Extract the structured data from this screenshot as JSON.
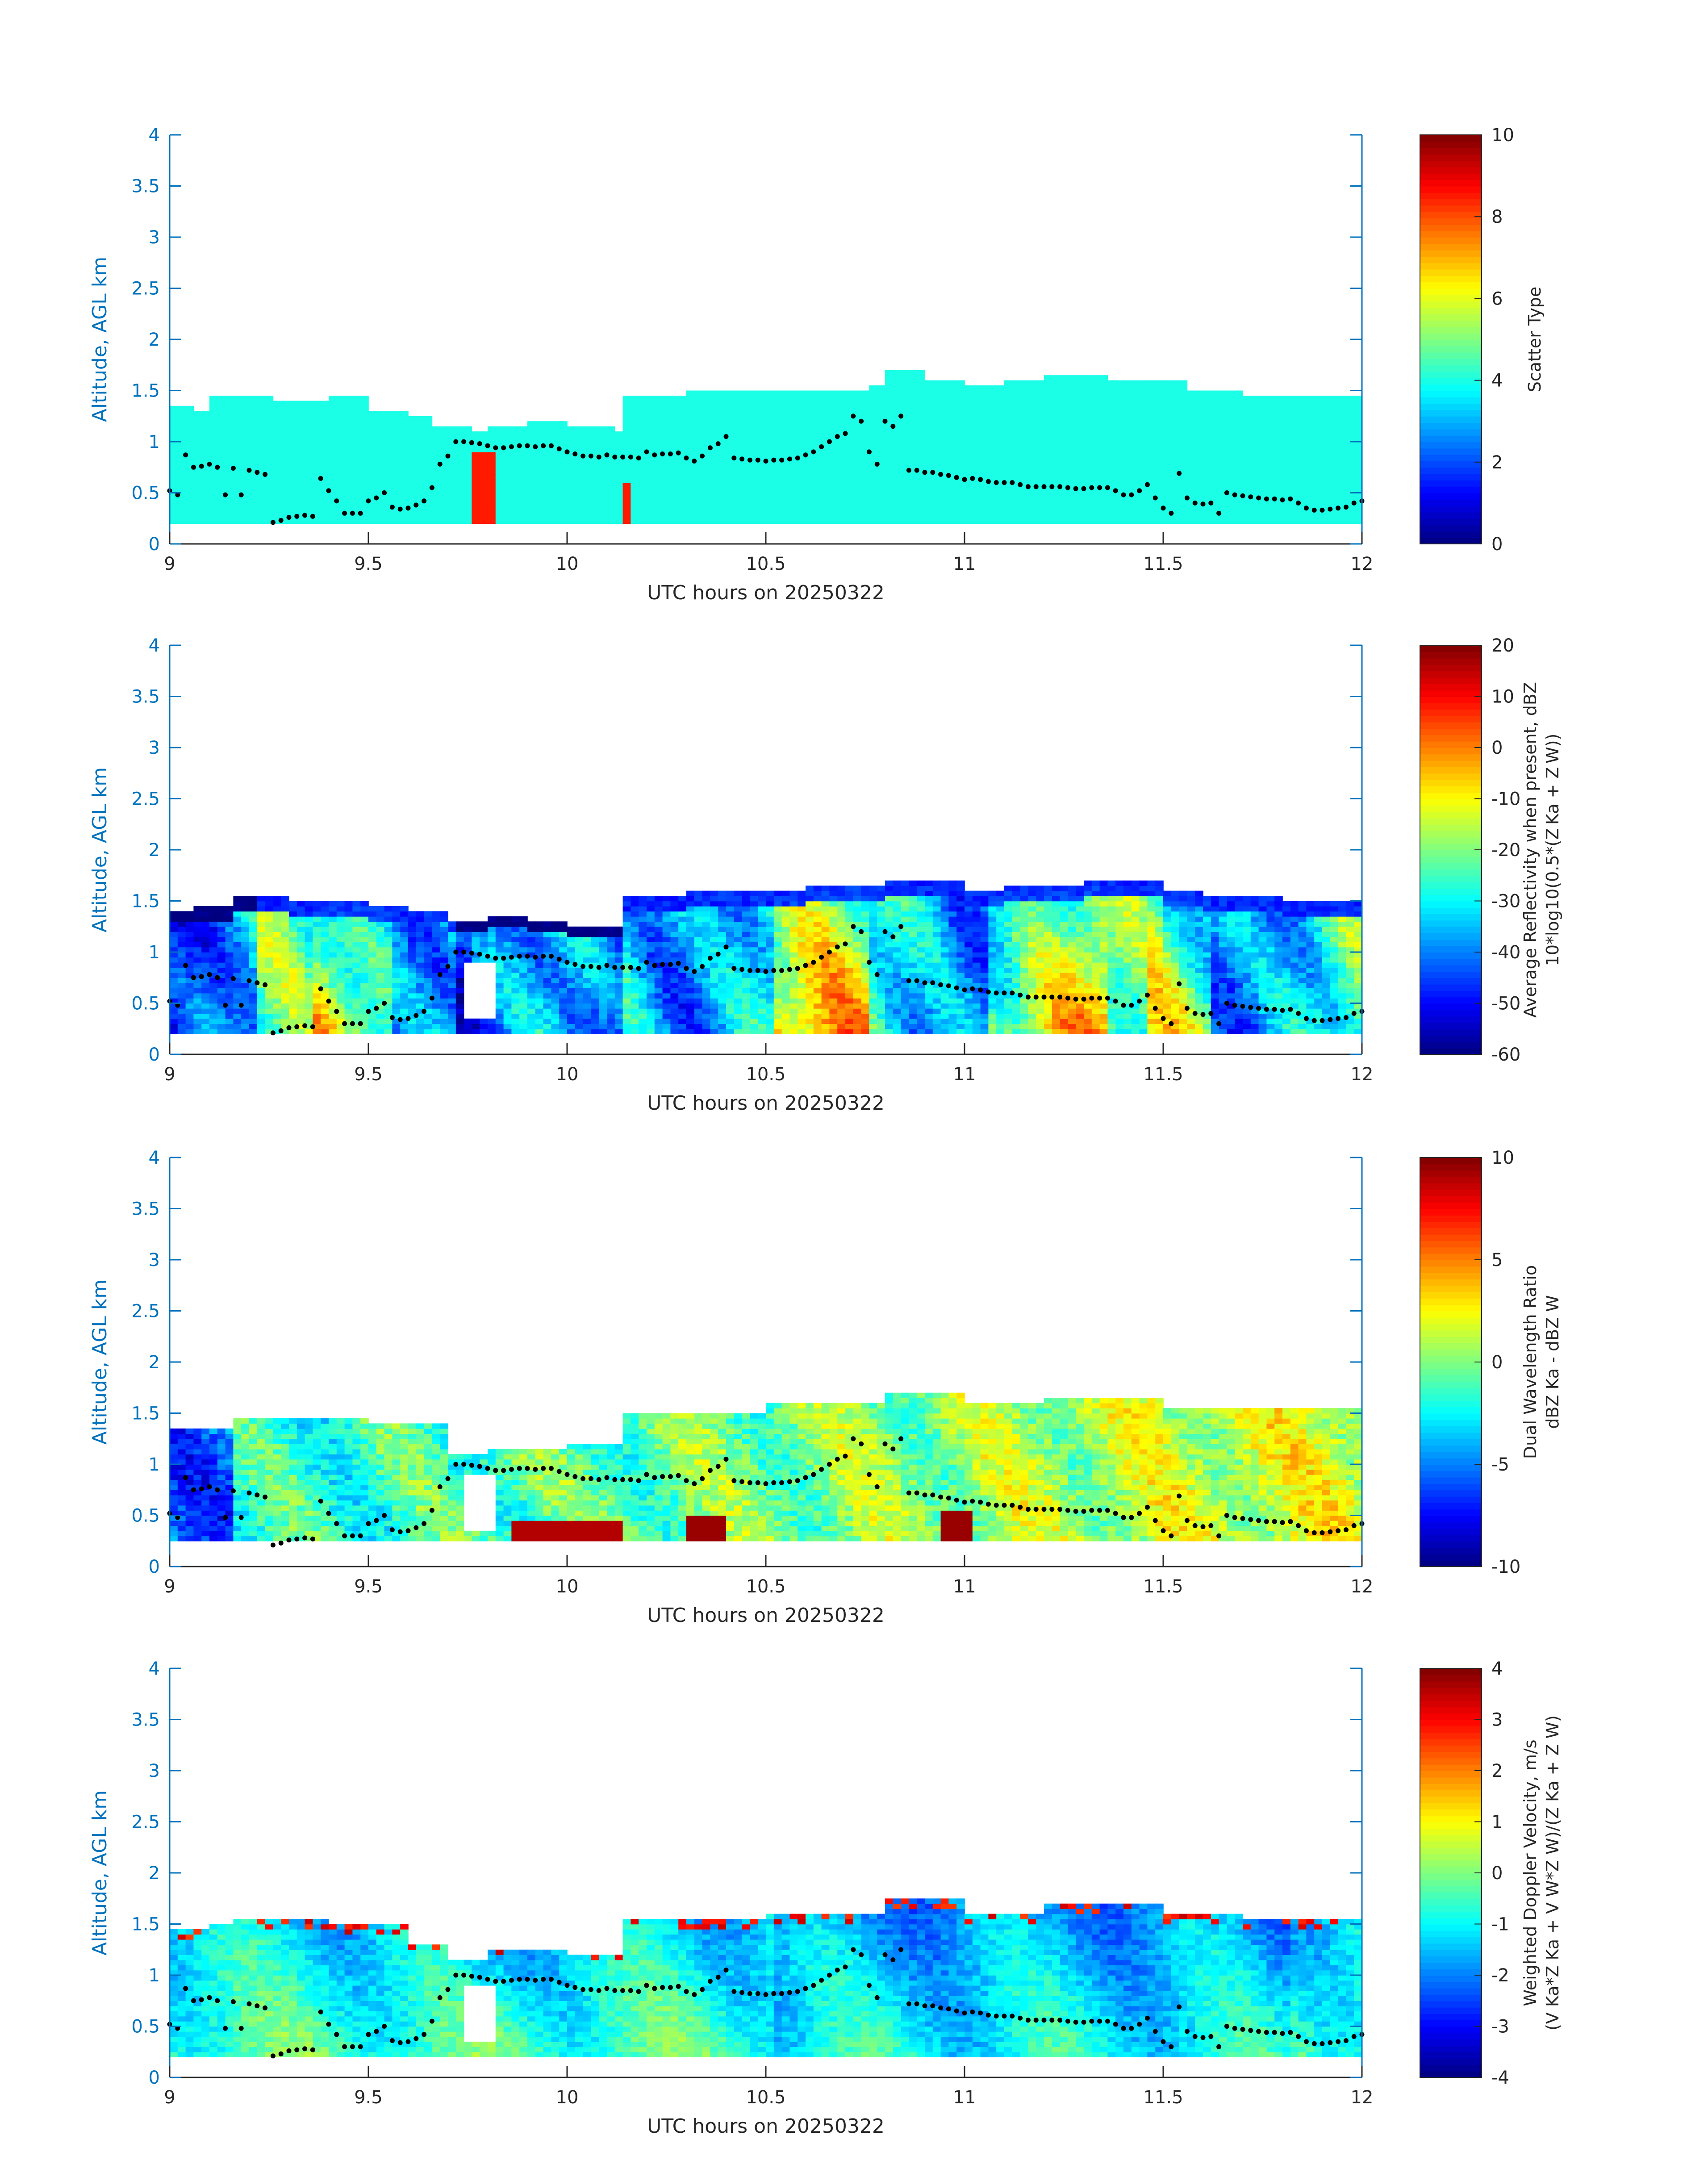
{
  "chart_data": [
    {
      "type": "heatmap",
      "xlabel": "UTC hours on 20250322",
      "ylabel": "Altitude, AGL km",
      "xlim": [
        9,
        12
      ],
      "ylim": [
        0,
        4
      ],
      "xticks": [
        "9",
        "9.5",
        "10",
        "10.5",
        "11",
        "11.5",
        "12"
      ],
      "yticks": [
        "0",
        "0.5",
        "1",
        "1.5",
        "2",
        "2.5",
        "3",
        "3.5",
        "4"
      ],
      "colorbar": {
        "label": "Scatter Type",
        "label2": "",
        "range": [
          0,
          10
        ],
        "ticks": [
          "0",
          "2",
          "4",
          "6",
          "8",
          "10"
        ]
      },
      "field": "scatter",
      "cloud_base_km": 0.2,
      "cloud_top_km": [
        [
          9.0,
          1.35
        ],
        [
          9.05,
          1.3
        ],
        [
          9.1,
          1.45
        ],
        [
          9.25,
          1.4
        ],
        [
          9.4,
          1.45
        ],
        [
          9.5,
          1.3
        ],
        [
          9.6,
          1.25
        ],
        [
          9.65,
          1.15
        ],
        [
          9.75,
          1.1
        ],
        [
          9.8,
          1.15
        ],
        [
          9.9,
          1.2
        ],
        [
          10.0,
          1.15
        ],
        [
          10.12,
          1.1
        ],
        [
          10.14,
          1.45
        ],
        [
          10.3,
          1.5
        ],
        [
          10.6,
          1.5
        ],
        [
          10.75,
          1.55
        ],
        [
          10.8,
          1.7
        ],
        [
          10.9,
          1.6
        ],
        [
          11.0,
          1.55
        ],
        [
          11.1,
          1.6
        ],
        [
          11.2,
          1.65
        ],
        [
          11.35,
          1.6
        ],
        [
          11.45,
          1.6
        ],
        [
          11.55,
          1.5
        ],
        [
          11.7,
          1.45
        ],
        [
          11.9,
          1.45
        ],
        [
          12.0,
          1.4
        ]
      ],
      "features": [
        {
          "x": [
            9.74,
            9.81
          ],
          "y": [
            0.2,
            0.9
          ],
          "value": 8.5
        },
        {
          "x": [
            10.12,
            10.14
          ],
          "y": [
            0.2,
            0.6
          ],
          "value": 8.5
        }
      ]
    },
    {
      "type": "heatmap",
      "xlabel": "UTC hours on 20250322",
      "ylabel": "Altitude, AGL km",
      "xlim": [
        9,
        12
      ],
      "ylim": [
        0,
        4
      ],
      "xticks": [
        "9",
        "9.5",
        "10",
        "10.5",
        "11",
        "11.5",
        "12"
      ],
      "yticks": [
        "0",
        "0.5",
        "1",
        "1.5",
        "2",
        "2.5",
        "3",
        "3.5",
        "4"
      ],
      "colorbar": {
        "label": "Average Reflectivity when present, dBZ",
        "label2": "10*log10(0.5*(Z Ka + Z W))",
        "range": [
          -60,
          20
        ],
        "ticks": [
          "-60",
          "-50",
          "-40",
          "-30",
          "-20",
          "-10",
          "0",
          "10",
          "20"
        ]
      },
      "field": "reflectivity",
      "cloud_base_km": 0.2,
      "cloud_top_km": [
        [
          9.0,
          1.4
        ],
        [
          9.05,
          1.45
        ],
        [
          9.15,
          1.55
        ],
        [
          9.3,
          1.5
        ],
        [
          9.5,
          1.45
        ],
        [
          9.6,
          1.4
        ],
        [
          9.7,
          1.3
        ],
        [
          9.8,
          1.35
        ],
        [
          9.9,
          1.3
        ],
        [
          10.0,
          1.25
        ],
        [
          10.12,
          1.25
        ],
        [
          10.14,
          1.55
        ],
        [
          10.3,
          1.6
        ],
        [
          10.6,
          1.65
        ],
        [
          10.8,
          1.7
        ],
        [
          11.0,
          1.6
        ],
        [
          11.1,
          1.65
        ],
        [
          11.3,
          1.7
        ],
        [
          11.5,
          1.6
        ],
        [
          11.6,
          1.55
        ],
        [
          11.8,
          1.5
        ],
        [
          12.0,
          1.45
        ]
      ]
    },
    {
      "type": "heatmap",
      "xlabel": "UTC hours on 20250322",
      "ylabel": "Altitude, AGL km",
      "xlim": [
        9,
        12
      ],
      "ylim": [
        0,
        4
      ],
      "xticks": [
        "9",
        "9.5",
        "10",
        "10.5",
        "11",
        "11.5",
        "12"
      ],
      "yticks": [
        "0",
        "0.5",
        "1",
        "1.5",
        "2",
        "2.5",
        "3",
        "3.5",
        "4"
      ],
      "colorbar": {
        "label": "Dual Wavelength Ratio",
        "label2": "dBZ Ka - dBZ W",
        "range": [
          -10,
          10
        ],
        "ticks": [
          "-10",
          "-5",
          "0",
          "5",
          "10"
        ]
      },
      "field": "dwr",
      "cloud_base_km": 0.25,
      "cloud_top_km": [
        [
          9.0,
          1.35
        ],
        [
          9.15,
          1.45
        ],
        [
          9.5,
          1.4
        ],
        [
          9.7,
          1.1
        ],
        [
          9.8,
          1.15
        ],
        [
          10.0,
          1.2
        ],
        [
          10.12,
          1.2
        ],
        [
          10.14,
          1.5
        ],
        [
          10.5,
          1.6
        ],
        [
          10.8,
          1.7
        ],
        [
          11.0,
          1.6
        ],
        [
          11.2,
          1.65
        ],
        [
          11.5,
          1.55
        ],
        [
          12.0,
          1.5
        ]
      ],
      "features": [
        {
          "x": [
            9.85,
            10.12
          ],
          "y": [
            0.25,
            0.4
          ],
          "value": 9
        },
        {
          "x": [
            10.28,
            10.38
          ],
          "y": [
            0.25,
            0.45
          ],
          "value": 9.5
        },
        {
          "x": [
            10.93,
            11.0
          ],
          "y": [
            0.25,
            0.5
          ],
          "value": 9.5
        }
      ]
    },
    {
      "type": "heatmap",
      "xlabel": "UTC hours on 20250322",
      "ylabel": "Altitude, AGL km",
      "xlim": [
        9,
        12
      ],
      "ylim": [
        0,
        4
      ],
      "xticks": [
        "9",
        "9.5",
        "10",
        "10.5",
        "11",
        "11.5",
        "12"
      ],
      "yticks": [
        "0",
        "0.5",
        "1",
        "1.5",
        "2",
        "2.5",
        "3",
        "3.5",
        "4"
      ],
      "colorbar": {
        "label": "Weighted Doppler Velocity, m/s",
        "label2": "(V Ka*Z Ka + V W*Z W)/(Z Ka + Z W)",
        "range": [
          -4,
          4
        ],
        "ticks": [
          "-4",
          "-3",
          "-2",
          "-1",
          "0",
          "1",
          "2",
          "3",
          "4"
        ]
      },
      "field": "velocity",
      "cloud_base_km": 0.2,
      "cloud_top_km": [
        [
          9.0,
          1.45
        ],
        [
          9.1,
          1.5
        ],
        [
          9.15,
          1.55
        ],
        [
          9.4,
          1.5
        ],
        [
          9.6,
          1.3
        ],
        [
          9.7,
          1.15
        ],
        [
          9.8,
          1.25
        ],
        [
          10.0,
          1.2
        ],
        [
          10.12,
          1.2
        ],
        [
          10.14,
          1.55
        ],
        [
          10.5,
          1.6
        ],
        [
          10.8,
          1.75
        ],
        [
          11.0,
          1.6
        ],
        [
          11.2,
          1.7
        ],
        [
          11.5,
          1.6
        ],
        [
          11.7,
          1.55
        ],
        [
          12.0,
          1.5
        ]
      ]
    }
  ],
  "dots_km": [
    [
      9.0,
      0.52
    ],
    [
      9.02,
      0.48
    ],
    [
      9.04,
      0.87
    ],
    [
      9.06,
      0.75
    ],
    [
      9.08,
      0.76
    ],
    [
      9.1,
      0.78
    ],
    [
      9.12,
      0.75
    ],
    [
      9.14,
      0.48
    ],
    [
      9.16,
      0.74
    ],
    [
      9.18,
      0.48
    ],
    [
      9.2,
      0.72
    ],
    [
      9.22,
      0.7
    ],
    [
      9.24,
      0.68
    ],
    [
      9.26,
      0.21
    ],
    [
      9.28,
      0.23
    ],
    [
      9.3,
      0.26
    ],
    [
      9.32,
      0.27
    ],
    [
      9.34,
      0.28
    ],
    [
      9.36,
      0.27
    ],
    [
      9.38,
      0.64
    ],
    [
      9.4,
      0.52
    ],
    [
      9.42,
      0.42
    ],
    [
      9.44,
      0.3
    ],
    [
      9.46,
      0.3
    ],
    [
      9.48,
      0.3
    ],
    [
      9.5,
      0.42
    ],
    [
      9.52,
      0.45
    ],
    [
      9.54,
      0.5
    ],
    [
      9.56,
      0.36
    ],
    [
      9.58,
      0.34
    ],
    [
      9.6,
      0.35
    ],
    [
      9.62,
      0.38
    ],
    [
      9.64,
      0.42
    ],
    [
      9.66,
      0.55
    ],
    [
      9.68,
      0.78
    ],
    [
      9.7,
      0.86
    ],
    [
      9.72,
      1.0
    ],
    [
      9.74,
      1.0
    ],
    [
      9.76,
      0.99
    ],
    [
      9.78,
      0.98
    ],
    [
      9.8,
      0.96
    ],
    [
      9.82,
      0.94
    ],
    [
      9.84,
      0.94
    ],
    [
      9.86,
      0.95
    ],
    [
      9.88,
      0.96
    ],
    [
      9.9,
      0.96
    ],
    [
      9.92,
      0.95
    ],
    [
      9.94,
      0.96
    ],
    [
      9.96,
      0.96
    ],
    [
      9.98,
      0.93
    ],
    [
      10.0,
      0.9
    ],
    [
      10.02,
      0.88
    ],
    [
      10.04,
      0.86
    ],
    [
      10.06,
      0.86
    ],
    [
      10.08,
      0.85
    ],
    [
      10.1,
      0.87
    ],
    [
      10.12,
      0.85
    ],
    [
      10.14,
      0.85
    ],
    [
      10.16,
      0.85
    ],
    [
      10.18,
      0.84
    ],
    [
      10.2,
      0.9
    ],
    [
      10.22,
      0.87
    ],
    [
      10.24,
      0.88
    ],
    [
      10.26,
      0.88
    ],
    [
      10.28,
      0.89
    ],
    [
      10.3,
      0.84
    ],
    [
      10.32,
      0.81
    ],
    [
      10.34,
      0.86
    ],
    [
      10.36,
      0.94
    ],
    [
      10.38,
      0.98
    ],
    [
      10.4,
      1.05
    ],
    [
      10.42,
      0.84
    ],
    [
      10.44,
      0.83
    ],
    [
      10.46,
      0.82
    ],
    [
      10.48,
      0.82
    ],
    [
      10.5,
      0.81
    ],
    [
      10.52,
      0.82
    ],
    [
      10.54,
      0.82
    ],
    [
      10.56,
      0.83
    ],
    [
      10.58,
      0.84
    ],
    [
      10.6,
      0.87
    ],
    [
      10.62,
      0.9
    ],
    [
      10.64,
      0.95
    ],
    [
      10.66,
      1.0
    ],
    [
      10.68,
      1.05
    ],
    [
      10.7,
      1.08
    ],
    [
      10.72,
      1.25
    ],
    [
      10.74,
      1.2
    ],
    [
      10.76,
      0.9
    ],
    [
      10.78,
      0.78
    ],
    [
      10.8,
      1.2
    ],
    [
      10.82,
      1.15
    ],
    [
      10.84,
      1.25
    ],
    [
      10.86,
      0.72
    ],
    [
      10.88,
      0.72
    ],
    [
      10.9,
      0.7
    ],
    [
      10.92,
      0.7
    ],
    [
      10.94,
      0.68
    ],
    [
      10.96,
      0.67
    ],
    [
      10.98,
      0.65
    ],
    [
      11.0,
      0.63
    ],
    [
      11.02,
      0.64
    ],
    [
      11.04,
      0.63
    ],
    [
      11.06,
      0.61
    ],
    [
      11.08,
      0.6
    ],
    [
      11.1,
      0.6
    ],
    [
      11.12,
      0.6
    ],
    [
      11.14,
      0.58
    ],
    [
      11.16,
      0.56
    ],
    [
      11.18,
      0.56
    ],
    [
      11.2,
      0.56
    ],
    [
      11.22,
      0.56
    ],
    [
      11.24,
      0.56
    ],
    [
      11.26,
      0.55
    ],
    [
      11.28,
      0.54
    ],
    [
      11.3,
      0.54
    ],
    [
      11.32,
      0.55
    ],
    [
      11.34,
      0.55
    ],
    [
      11.36,
      0.55
    ],
    [
      11.38,
      0.52
    ],
    [
      11.4,
      0.48
    ],
    [
      11.42,
      0.48
    ],
    [
      11.44,
      0.52
    ],
    [
      11.46,
      0.58
    ],
    [
      11.48,
      0.45
    ],
    [
      11.5,
      0.35
    ],
    [
      11.52,
      0.3
    ],
    [
      11.54,
      0.69
    ],
    [
      11.56,
      0.45
    ],
    [
      11.58,
      0.4
    ],
    [
      11.6,
      0.39
    ],
    [
      11.62,
      0.4
    ],
    [
      11.64,
      0.3
    ],
    [
      11.66,
      0.5
    ],
    [
      11.68,
      0.48
    ],
    [
      11.7,
      0.47
    ],
    [
      11.72,
      0.46
    ],
    [
      11.74,
      0.45
    ],
    [
      11.76,
      0.44
    ],
    [
      11.78,
      0.44
    ],
    [
      11.8,
      0.43
    ],
    [
      11.82,
      0.44
    ],
    [
      11.84,
      0.4
    ],
    [
      11.86,
      0.35
    ],
    [
      11.88,
      0.33
    ],
    [
      11.9,
      0.33
    ],
    [
      11.92,
      0.34
    ],
    [
      11.94,
      0.35
    ],
    [
      11.96,
      0.36
    ],
    [
      11.98,
      0.4
    ],
    [
      12.0,
      0.42
    ]
  ],
  "colors": {
    "axis": "#0072BD",
    "text": "#262626",
    "dot": "#000000"
  }
}
